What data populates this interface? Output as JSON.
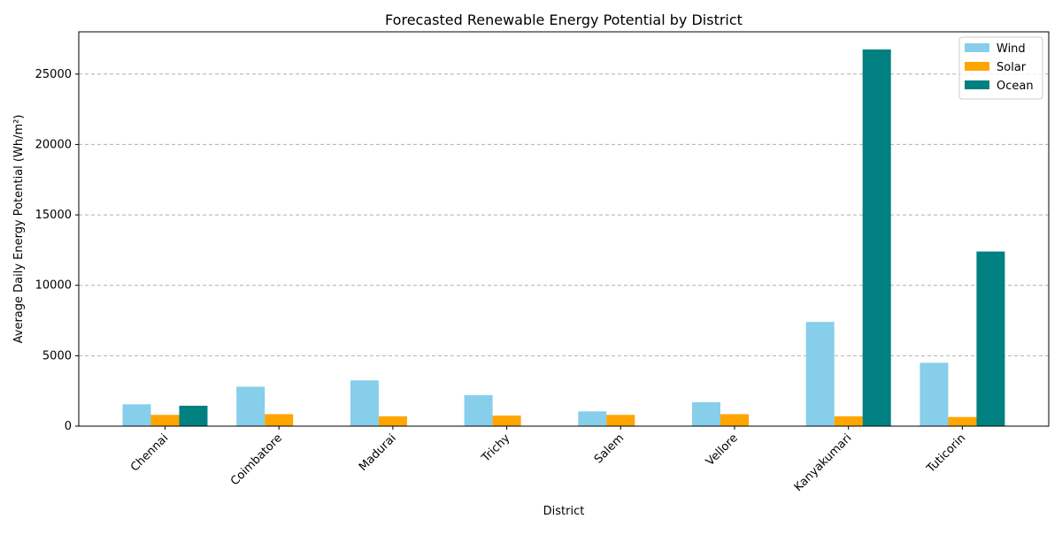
{
  "chart_data": {
    "type": "bar",
    "title": "Forecasted Renewable Energy Potential by District",
    "xlabel": "District",
    "ylabel": "Average Daily Energy Potential (Wh/m²)",
    "categories": [
      "Chennai",
      "Coimbatore",
      "Madurai",
      "Trichy",
      "Salem",
      "Vellore",
      "Kanyakumari",
      "Tuticorin"
    ],
    "series": [
      {
        "name": "Wind",
        "color": "#87CEEB",
        "values": [
          1550,
          2800,
          3250,
          2200,
          1050,
          1700,
          7400,
          4500
        ]
      },
      {
        "name": "Solar",
        "color": "#FFA500",
        "values": [
          800,
          850,
          700,
          750,
          800,
          850,
          700,
          650
        ]
      },
      {
        "name": "Ocean",
        "color": "#008080",
        "values": [
          1450,
          0,
          0,
          0,
          0,
          0,
          26750,
          12400
        ]
      }
    ],
    "yticks": [
      0,
      5000,
      10000,
      15000,
      20000,
      25000
    ],
    "ylim": [
      0,
      28000
    ],
    "grid": "y-dashed",
    "legend": "top-right"
  }
}
